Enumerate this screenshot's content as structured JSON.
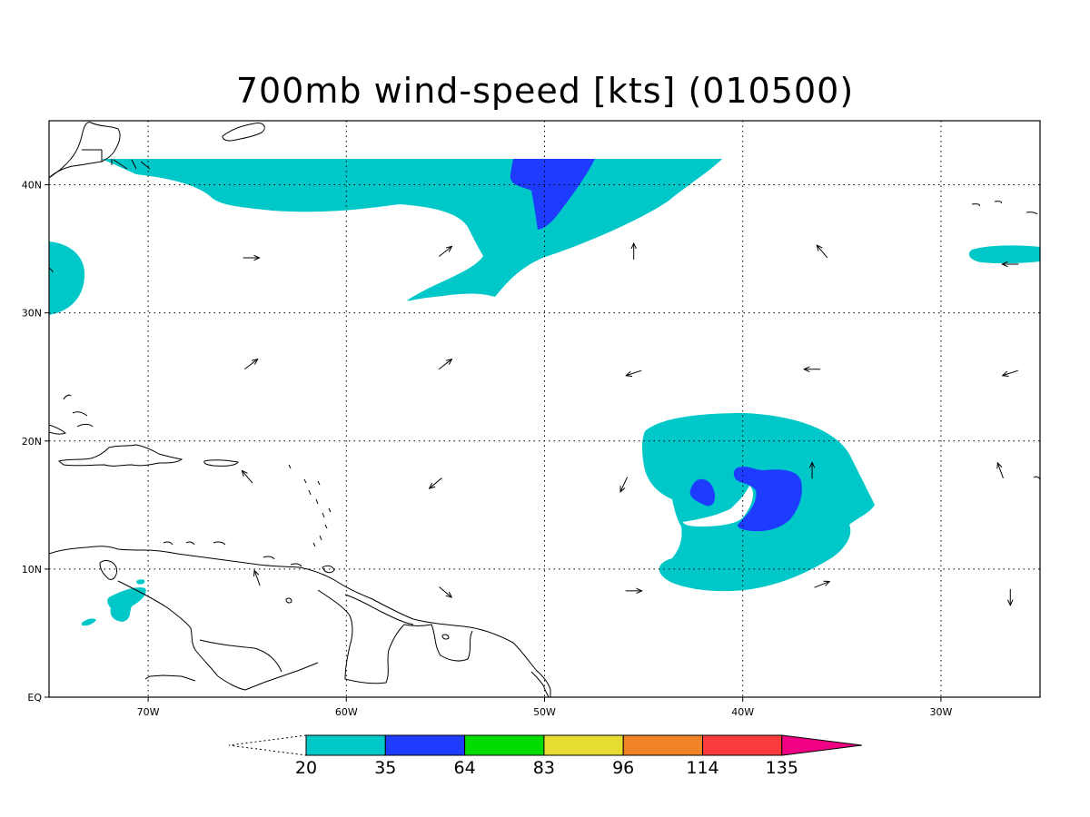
{
  "title": "700mb wind-speed [kts] (010500)",
  "map": {
    "lon_ticks": [
      {
        "lon": -70,
        "label": "70W"
      },
      {
        "lon": -60,
        "label": "60W"
      },
      {
        "lon": -50,
        "label": "50W"
      },
      {
        "lon": -40,
        "label": "40W"
      },
      {
        "lon": -30,
        "label": "30W"
      }
    ],
    "lat_ticks": [
      {
        "lat": 0,
        "label": "EQ"
      },
      {
        "lat": 10,
        "label": "10N"
      },
      {
        "lat": 20,
        "label": "20N"
      },
      {
        "lat": 30,
        "label": "30N"
      },
      {
        "lat": 40,
        "label": "40N"
      }
    ],
    "lon_range": [
      -75,
      -25
    ],
    "lat_range": [
      0,
      45
    ],
    "grid": "dotted"
  },
  "colorbar": {
    "levels": [
      "20",
      "35",
      "64",
      "83",
      "96",
      "114",
      "135"
    ],
    "colors": [
      "#00c8c8",
      "#1e3cff",
      "#00dc00",
      "#e6dc32",
      "#f08228",
      "#fa3c3c",
      "#f00082"
    ],
    "below_color": "#ffffff"
  },
  "wind_vectors": [
    {
      "lon": -64.8,
      "lat": 34.3,
      "dir": "E"
    },
    {
      "lon": -55.0,
      "lat": 34.8,
      "dir": "NE"
    },
    {
      "lon": -45.5,
      "lat": 34.8,
      "dir": "N"
    },
    {
      "lon": -36.0,
      "lat": 34.8,
      "dir": "NW"
    },
    {
      "lon": -26.5,
      "lat": 33.8,
      "dir": "W"
    },
    {
      "lon": -64.8,
      "lat": 26.0,
      "dir": "NE"
    },
    {
      "lon": -55.0,
      "lat": 26.0,
      "dir": "NE"
    },
    {
      "lon": -45.5,
      "lat": 25.3,
      "dir": "WSW"
    },
    {
      "lon": -36.5,
      "lat": 25.6,
      "dir": "W"
    },
    {
      "lon": -26.5,
      "lat": 25.3,
      "dir": "WSW"
    },
    {
      "lon": -65.0,
      "lat": 17.2,
      "dir": "NW"
    },
    {
      "lon": -55.5,
      "lat": 16.7,
      "dir": "SW"
    },
    {
      "lon": -46.0,
      "lat": 16.6,
      "dir": "SSW"
    },
    {
      "lon": -36.5,
      "lat": 17.7,
      "dir": "N"
    },
    {
      "lon": -27.0,
      "lat": 17.7,
      "dir": "NNW"
    },
    {
      "lon": -64.5,
      "lat": 9.3,
      "dir": "NNW"
    },
    {
      "lon": -55.0,
      "lat": 8.2,
      "dir": "SE"
    },
    {
      "lon": -45.5,
      "lat": 8.3,
      "dir": "E"
    },
    {
      "lon": -36.0,
      "lat": 8.8,
      "dir": "ENE"
    },
    {
      "lon": -26.5,
      "lat": 7.8,
      "dir": "S"
    }
  ]
}
